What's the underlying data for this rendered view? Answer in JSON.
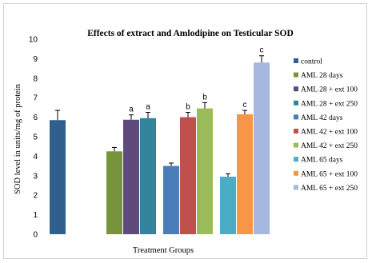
{
  "chart_data": {
    "type": "bar",
    "title": "Effects of extract and  Amlodipine  on  Testicular SOD",
    "xlabel": "Treatment Groups",
    "ylabel": "SOD level in units/mg of protein",
    "ylim": [
      0,
      10
    ],
    "yticks": [
      "0",
      "1",
      "2",
      "3",
      "4",
      "5",
      "6",
      "7",
      "8",
      "9",
      "10"
    ],
    "grid": false,
    "legend_position": "right",
    "series": [
      {
        "name": "control",
        "color": "#2e5f8f",
        "value": 5.85,
        "error": 0.5,
        "label": ""
      },
      {
        "name": "AML 28 days",
        "color": "#77933c",
        "value": 4.25,
        "error": 0.2,
        "label": ""
      },
      {
        "name": "AML 28 + ext 100",
        "color": "#604a7b",
        "value": 5.87,
        "error": 0.25,
        "label": "a"
      },
      {
        "name": "AML 28 + ext 250",
        "color": "#31849b",
        "value": 5.95,
        "error": 0.3,
        "label": "a"
      },
      {
        "name": "AML 42 days",
        "color": "#4a7ebb",
        "value": 3.5,
        "error": 0.15,
        "label": ""
      },
      {
        "name": "AML 42 + ext 100",
        "color": "#c0504d",
        "value": 6.0,
        "error": 0.25,
        "label": "b"
      },
      {
        "name": "AML 42 + ext 250",
        "color": "#9bbb59",
        "value": 6.45,
        "error": 0.3,
        "label": "b"
      },
      {
        "name": "AML 65 days",
        "color": "#4bacc6",
        "value": 2.95,
        "error": 0.15,
        "label": ""
      },
      {
        "name": "AML 65 + ext 100",
        "color": "#f79646",
        "value": 6.15,
        "error": 0.2,
        "label": "c"
      },
      {
        "name": "AML 65 + ext 250",
        "color": "#a6b8dd",
        "value": 8.8,
        "error": 0.35,
        "label": "c"
      }
    ]
  }
}
